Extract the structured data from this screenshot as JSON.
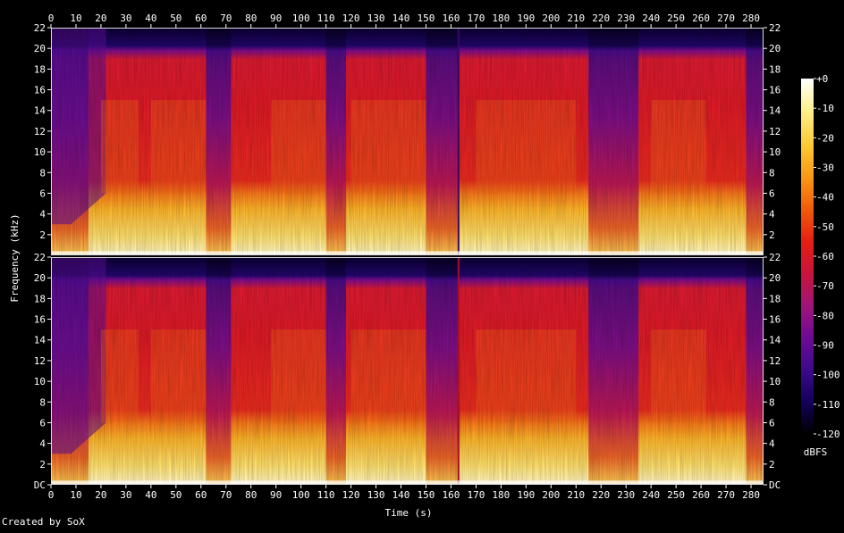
{
  "footer": {
    "credit": "Created by SoX"
  },
  "colors": {
    "background": "#000000",
    "text": "#ffffff",
    "panel_border": "#dcdcdc"
  },
  "chart_data": {
    "type": "heatmap",
    "title": "",
    "xlabel": "Time (s)",
    "ylabel": "Frequency (kHz)",
    "xlim": [
      0,
      285
    ],
    "ylim": [
      0,
      22
    ],
    "x_ticks": [
      "0",
      "10",
      "20",
      "30",
      "40",
      "50",
      "60",
      "70",
      "80",
      "90",
      "100",
      "110",
      "120",
      "130",
      "140",
      "150",
      "160",
      "170",
      "180",
      "190",
      "200",
      "210",
      "220",
      "230",
      "240",
      "250",
      "260",
      "270",
      "280"
    ],
    "x_tick_values": [
      0,
      10,
      20,
      30,
      40,
      50,
      60,
      70,
      80,
      90,
      100,
      110,
      120,
      130,
      140,
      150,
      160,
      170,
      180,
      190,
      200,
      210,
      220,
      230,
      240,
      250,
      260,
      270,
      280
    ],
    "y_ticks": [
      "DC",
      "2",
      "4",
      "6",
      "8",
      "10",
      "12",
      "14",
      "16",
      "18",
      "20",
      "22"
    ],
    "y_tick_values": [
      0,
      2,
      4,
      6,
      8,
      10,
      12,
      14,
      16,
      18,
      20,
      22
    ],
    "channels": [
      {
        "y_ticks": [
          "2",
          "4",
          "6",
          "8",
          "10",
          "12",
          "14",
          "16",
          "18",
          "20",
          "22"
        ],
        "y_tick_values": [
          2,
          4,
          6,
          8,
          10,
          12,
          14,
          16,
          18,
          20,
          22
        ]
      },
      {
        "y_ticks": [
          "DC",
          "2",
          "4",
          "6",
          "8",
          "10",
          "12",
          "14",
          "16",
          "18",
          "20",
          "22"
        ],
        "y_tick_values": [
          0,
          2,
          4,
          6,
          8,
          10,
          12,
          14,
          16,
          18,
          20,
          22
        ]
      }
    ],
    "colorbar": {
      "label": "dBFS",
      "ticks": [
        "+0",
        "-10",
        "-20",
        "-30",
        "-40",
        "-50",
        "-60",
        "-70",
        "-80",
        "-90",
        "-100",
        "-110",
        "-120"
      ],
      "tick_values": [
        0,
        -10,
        -20,
        -30,
        -40,
        -50,
        -60,
        -70,
        -80,
        -90,
        -100,
        -110,
        -120
      ],
      "range": [
        -120,
        0
      ],
      "colormap": [
        "#000000",
        "#14005a",
        "#3c0a8c",
        "#6e0a96",
        "#a0147a",
        "#c8143c",
        "#e61e14",
        "#f05a0a",
        "#fa9614",
        "#fcc832",
        "#fef08c",
        "#ffffff"
      ]
    },
    "loud_sections_s": [
      [
        20,
        35
      ],
      [
        40,
        62
      ],
      [
        88,
        110
      ],
      [
        120,
        150
      ],
      [
        170,
        210
      ],
      [
        240,
        262
      ]
    ],
    "quiet_sections_s": [
      [
        0,
        15
      ],
      [
        62,
        72
      ],
      [
        110,
        118
      ],
      [
        150,
        163
      ],
      [
        215,
        235
      ],
      [
        278,
        285
      ]
    ],
    "dropout_s": [
      163
    ],
    "description_bands_khz": {
      "strong": [
        0,
        6
      ],
      "mid": [
        6,
        15
      ],
      "ceiling": 20
    }
  }
}
